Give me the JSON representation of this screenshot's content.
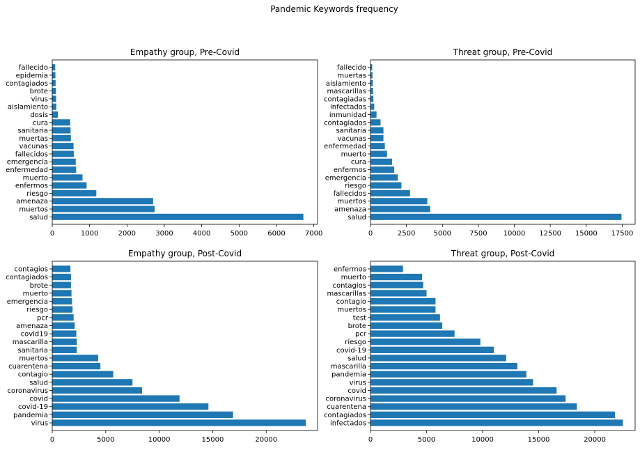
{
  "figure": {
    "title": "Pandemic Keywords frequency",
    "bar_color": "#1f77b4"
  },
  "chart_data": [
    {
      "type": "bar",
      "orientation": "horizontal",
      "title": "Empathy group, Pre-Covid",
      "xlabel": "",
      "ylabel": "",
      "xlim": [
        0,
        7100
      ],
      "xticks": [
        0,
        1000,
        2000,
        3000,
        4000,
        5000,
        6000,
        7000
      ],
      "grid": false,
      "categories": [
        "salud",
        "muertos",
        "amenaza",
        "riesgo",
        "enfermos",
        "muerto",
        "enfermedad",
        "emergencia",
        "fallecidos",
        "vacunas",
        "muertas",
        "sanitaria",
        "cura",
        "dosis",
        "aislamiento",
        "virus",
        "brote",
        "contagiados",
        "epidemia",
        "fallecido"
      ],
      "values": [
        6720,
        2740,
        2700,
        1180,
        920,
        810,
        640,
        630,
        580,
        570,
        500,
        490,
        480,
        150,
        110,
        105,
        100,
        90,
        85,
        80
      ]
    },
    {
      "type": "bar",
      "orientation": "horizontal",
      "title": "Threat group, Pre-Covid",
      "xlabel": "",
      "ylabel": "",
      "xlim": [
        0,
        18400
      ],
      "xticks": [
        0,
        2500,
        5000,
        7500,
        10000,
        12500,
        15000,
        17500
      ],
      "grid": false,
      "categories": [
        "salud",
        "amenaza",
        "muertos",
        "fallecidos",
        "riesgo",
        "emergencia",
        "enfermos",
        "cura",
        "muerto",
        "enfermedad",
        "vacunas",
        "sanitaria",
        "contagiados",
        "inmunidad",
        "infectados",
        "contagiadas",
        "mascarillas",
        "aislamiento",
        "muertas",
        "fallecido"
      ],
      "values": [
        17450,
        4150,
        3950,
        2750,
        2150,
        1900,
        1650,
        1500,
        1150,
        1000,
        900,
        900,
        700,
        420,
        260,
        200,
        180,
        160,
        140,
        120
      ]
    },
    {
      "type": "bar",
      "orientation": "horizontal",
      "title": "Empathy group, Post-Covid",
      "xlabel": "",
      "ylabel": "",
      "xlim": [
        0,
        24800
      ],
      "xticks": [
        0,
        5000,
        10000,
        15000,
        20000
      ],
      "grid": false,
      "categories": [
        "virus",
        "pandemia",
        "covid-19",
        "covid",
        "coronavirus",
        "salud",
        "contagio",
        "cuarentena",
        "muertos",
        "sanitaria",
        "mascarilla",
        "covid19",
        "amenaza",
        "pcr",
        "riesgo",
        "emergencia",
        "muerto",
        "brote",
        "contagiados",
        "contagios"
      ],
      "values": [
        23700,
        16900,
        14600,
        11900,
        8400,
        7500,
        5700,
        4500,
        4300,
        2300,
        2300,
        2250,
        2100,
        2000,
        1900,
        1850,
        1800,
        1750,
        1750,
        1700
      ]
    },
    {
      "type": "bar",
      "orientation": "horizontal",
      "title": "Threat group, Post-Covid",
      "xlabel": "",
      "ylabel": "",
      "xlim": [
        0,
        23600
      ],
      "xticks": [
        0,
        5000,
        10000,
        15000,
        20000
      ],
      "grid": false,
      "categories": [
        "infectados",
        "contagiados",
        "cuarentena",
        "coronavirus",
        "covid",
        "virus",
        "pandemia",
        "mascarilla",
        "salud",
        "covid-19",
        "riesgo",
        "pcr",
        "brote",
        "test",
        "muertos",
        "contagio",
        "mascarillas",
        "contagios",
        "muerto",
        "enfermos"
      ],
      "values": [
        22500,
        21800,
        18400,
        17400,
        16600,
        14500,
        13900,
        13100,
        12100,
        11000,
        9800,
        7500,
        6400,
        6200,
        5800,
        5800,
        5000,
        4700,
        4600,
        2900
      ]
    }
  ]
}
